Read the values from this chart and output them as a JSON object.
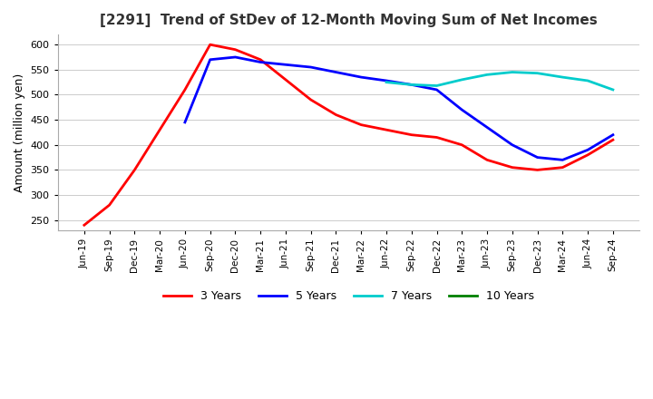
{
  "title": "[2291]  Trend of StDev of 12-Month Moving Sum of Net Incomes",
  "ylabel": "Amount (million yen)",
  "ylim": [
    230,
    620
  ],
  "yticks": [
    250,
    300,
    350,
    400,
    450,
    500,
    550,
    600
  ],
  "bg_color": "#ffffff",
  "line_colors": {
    "3y": "#ff0000",
    "5y": "#0000ff",
    "7y": "#00cccc",
    "10y": "#008000"
  },
  "legend_labels": [
    "3 Years",
    "5 Years",
    "7 Years",
    "10 Years"
  ],
  "x_labels": [
    "Jun-19",
    "Sep-19",
    "Dec-19",
    "Mar-20",
    "Jun-20",
    "Sep-20",
    "Dec-20",
    "Mar-21",
    "Jun-21",
    "Sep-21",
    "Dec-21",
    "Mar-22",
    "Jun-22",
    "Sep-22",
    "Dec-22",
    "Mar-23",
    "Jun-23",
    "Sep-23",
    "Dec-23",
    "Mar-24",
    "Jun-24",
    "Sep-24"
  ],
  "series_3y": [
    240,
    280,
    350,
    430,
    510,
    600,
    590,
    570,
    530,
    490,
    460,
    440,
    430,
    420,
    415,
    400,
    370,
    355,
    350,
    355,
    380,
    410
  ],
  "series_5y": [
    null,
    null,
    null,
    null,
    445,
    570,
    575,
    565,
    560,
    555,
    545,
    535,
    528,
    520,
    510,
    470,
    435,
    400,
    375,
    370,
    390,
    420
  ],
  "series_7y": [
    null,
    null,
    null,
    null,
    null,
    null,
    null,
    null,
    null,
    null,
    null,
    null,
    525,
    520,
    518,
    530,
    540,
    545,
    543,
    535,
    528,
    510
  ],
  "series_10y": [
    null,
    null,
    null,
    null,
    null,
    null,
    null,
    null,
    null,
    null,
    null,
    null,
    null,
    null,
    null,
    null,
    null,
    null,
    null,
    null,
    null,
    null
  ]
}
